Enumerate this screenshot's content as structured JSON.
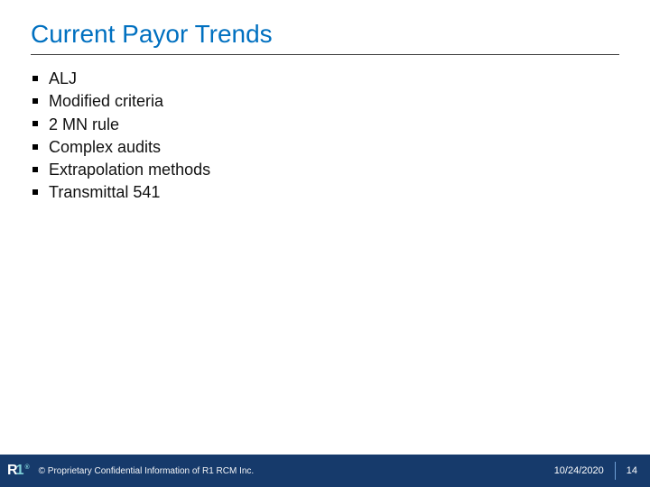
{
  "title": "Current Payor Trends",
  "bullets": [
    "ALJ",
    "Modified criteria",
    "2 MN rule",
    "Complex audits",
    "Extrapolation methods",
    "Transmittal 541"
  ],
  "footer": {
    "logo_r": "R",
    "logo_1": "1",
    "logo_tm": "®",
    "copyright": "© Proprietary Confidential Information of R1 RCM Inc.",
    "date": "10/24/2020",
    "page": "14"
  },
  "colors": {
    "title": "#0070c0",
    "footer_bg": "#163a6b",
    "accent": "#7fd0d8"
  }
}
